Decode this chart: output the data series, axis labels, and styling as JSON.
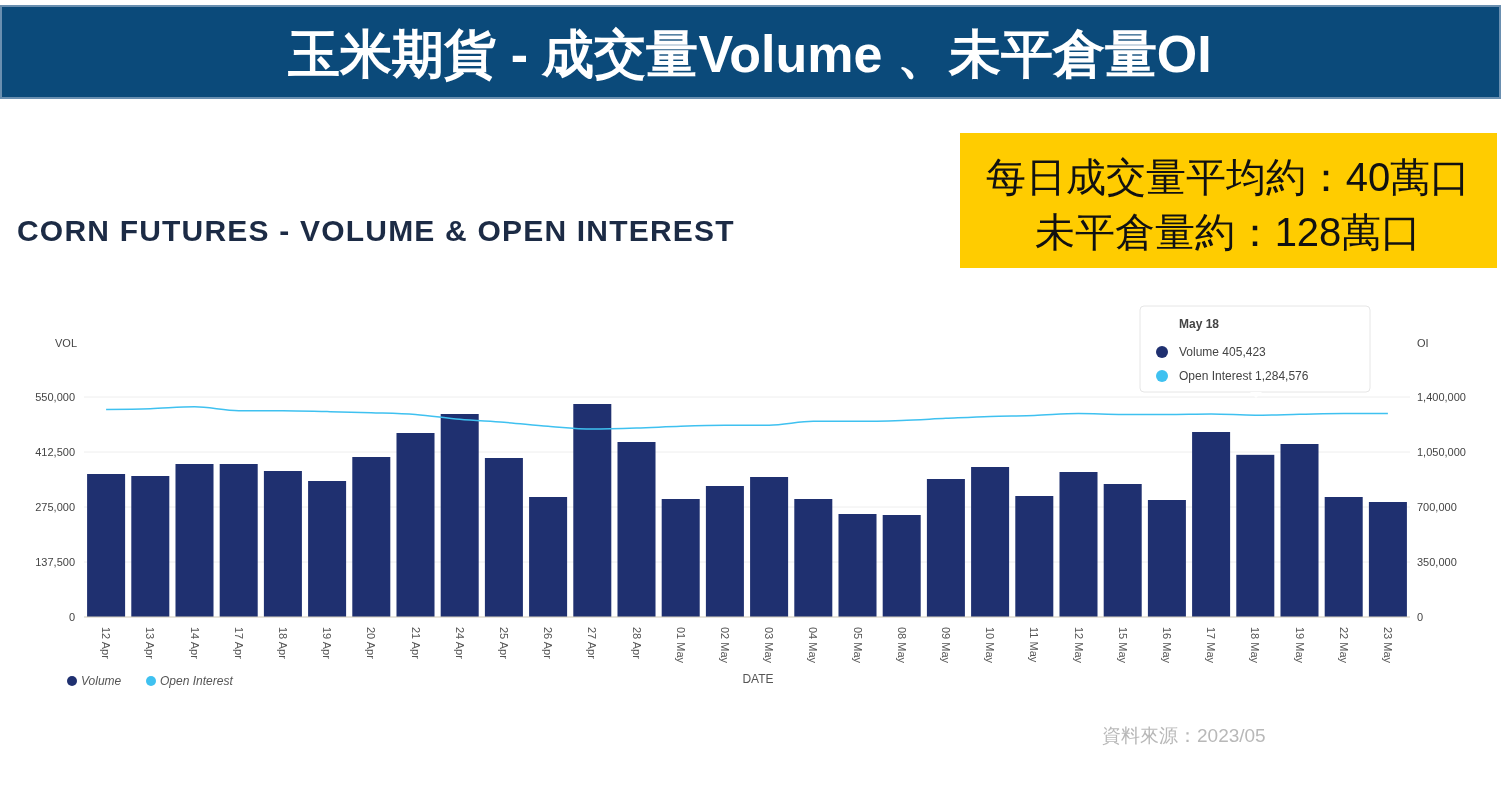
{
  "chart_data": {
    "type": "bar",
    "title": "玉米期貨 - 成交量Volume 、未平倉量OI",
    "subtitle": "CORN FUTURES - VOLUME & OPEN INTEREST",
    "xlabel": "DATE",
    "ylabel": "VOL",
    "y2label": "OI",
    "categories": [
      "12 Apr",
      "13 Apr",
      "14 Apr",
      "17 Apr",
      "18 Apr",
      "19 Apr",
      "20 Apr",
      "21 Apr",
      "24 Apr",
      "25 Apr",
      "26 Apr",
      "27 Apr",
      "28 Apr",
      "01 May",
      "02 May",
      "03 May",
      "04 May",
      "05 May",
      "08 May",
      "09 May",
      "10 May",
      "11 May",
      "12 May",
      "15 May",
      "16 May",
      "17 May",
      "18 May",
      "19 May",
      "22 May",
      "23 May"
    ],
    "series": [
      {
        "name": "Volume",
        "color": "#1f3070",
        "values": [
          357500,
          352500,
          382500,
          382500,
          365000,
          340000,
          400000,
          460000,
          507500,
          397500,
          300000,
          532500,
          437500,
          295000,
          327500,
          350000,
          295000,
          257500,
          255000,
          345000,
          375000,
          302500,
          362500,
          332500,
          292500,
          462500,
          405423,
          432500,
          300000,
          287500
        ]
      },
      {
        "name": "Open Interest",
        "type": "line",
        "axis": "y2",
        "color": "#3fc1f0",
        "values": [
          1320000,
          1325000,
          1338000,
          1313000,
          1313000,
          1307000,
          1300000,
          1289000,
          1258000,
          1239000,
          1214000,
          1196000,
          1202000,
          1214000,
          1220000,
          1220000,
          1245000,
          1245000,
          1251000,
          1264000,
          1276000,
          1282000,
          1295000,
          1289000,
          1289000,
          1292000,
          1284576,
          1290000,
          1295000,
          1295000
        ]
      }
    ],
    "ylim": [
      0,
      550000
    ],
    "yticks": [
      0,
      {
        "value": 137500,
        "label": "137,500"
      },
      {
        "value": 275000,
        "label": "275,000"
      },
      {
        "value": 412500,
        "label": "412,500"
      },
      {
        "value": 550000,
        "label": "550,000"
      }
    ],
    "y2lim": [
      0,
      1400000
    ],
    "y2ticks": [
      0,
      {
        "value": 350000,
        "label": "350,000"
      },
      {
        "value": 700000,
        "label": "700,000"
      },
      {
        "value": 1050000,
        "label": "1,050,000"
      },
      {
        "value": 1400000,
        "label": "1,400,000"
      }
    ],
    "grid": "y",
    "legend": "bottom left",
    "marker": "none",
    "annotations": [
      "每日成交量平均約：40萬口",
      "未平倉量約：128萬口",
      "May 18",
      "Volume 405,423",
      "Open Interest 1,284,576",
      "資料來源：2023/05"
    ]
  }
}
